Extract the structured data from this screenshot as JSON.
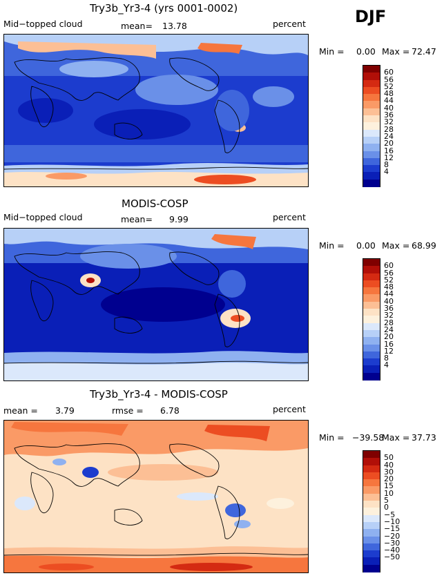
{
  "season": "DJF",
  "panels": [
    {
      "title": "Try3b_Yr3-4 (yrs 0001-0002)",
      "left_label": "Mid−topped cloud",
      "center_label": "mean=",
      "center_value": "13.78",
      "right_label": "percent",
      "min_text": "Min =",
      "min_value": "0.00",
      "max_text": "Max =",
      "max_value": "72.47",
      "colorbar_labels": [
        "60",
        "56",
        "52",
        "48",
        "44",
        "40",
        "36",
        "32",
        "28",
        "24",
        "20",
        "16",
        "12",
        "8",
        "4"
      ],
      "colorbar_colors": [
        "#7f0000",
        "#b10f08",
        "#d42a12",
        "#ec4d22",
        "#f6763e",
        "#fa9a66",
        "#fcbf95",
        "#fde2c5",
        "#fdf1dd",
        "#dbe8fb",
        "#b7d0f7",
        "#8fb1f0",
        "#6a90e8",
        "#3f66dc",
        "#1c3cce",
        "#0a1fb7",
        "#00008f"
      ]
    },
    {
      "title": "MODIS-COSP",
      "left_label": "Mid−topped cloud",
      "center_label": "mean=",
      "center_value": "9.99",
      "right_label": "percent",
      "min_text": "Min =",
      "min_value": "0.00",
      "max_text": "Max =",
      "max_value": "68.99",
      "colorbar_labels": [
        "60",
        "56",
        "52",
        "48",
        "44",
        "40",
        "36",
        "32",
        "28",
        "24",
        "20",
        "16",
        "12",
        "8",
        "4"
      ],
      "colorbar_colors": [
        "#7f0000",
        "#b10f08",
        "#d42a12",
        "#ec4d22",
        "#f6763e",
        "#fa9a66",
        "#fcbf95",
        "#fde2c5",
        "#fdf1dd",
        "#dbe8fb",
        "#b7d0f7",
        "#8fb1f0",
        "#6a90e8",
        "#3f66dc",
        "#1c3cce",
        "#0a1fb7",
        "#00008f"
      ]
    },
    {
      "title": "Try3b_Yr3-4 - MODIS-COSP",
      "left_label": "mean =",
      "left_value": "3.79",
      "center_label": "rmse =",
      "center_value": "6.78",
      "right_label": "percent",
      "min_text": "Min =",
      "min_value": "−39.58",
      "max_text": "Max =",
      "max_value": "37.73",
      "colorbar_labels": [
        "50",
        "40",
        "30",
        "20",
        "15",
        "10",
        "5",
        "0",
        "−5",
        "−10",
        "−15",
        "−20",
        "−30",
        "−40",
        "−50"
      ],
      "colorbar_colors": [
        "#7f0000",
        "#b10f08",
        "#d42a12",
        "#ec4d22",
        "#f6763e",
        "#fa9a66",
        "#fcbf95",
        "#fde2c5",
        "#fdf1dd",
        "#dbe8fb",
        "#b7d0f7",
        "#8fb1f0",
        "#6a90e8",
        "#3f66dc",
        "#1c3cce",
        "#0a1fb7",
        "#00008f"
      ]
    }
  ],
  "chart_data": [
    {
      "type": "heatmap",
      "title": "Try3b_Yr3-4 (yrs 0001-0002)",
      "variable": "Mid−topped cloud",
      "units": "percent",
      "mean": 13.78,
      "min": 0.0,
      "max": 72.47,
      "contour_levels": [
        4,
        8,
        12,
        16,
        20,
        24,
        28,
        32,
        36,
        40,
        44,
        48,
        52,
        56,
        60
      ]
    },
    {
      "type": "heatmap",
      "title": "MODIS-COSP",
      "variable": "Mid−topped cloud",
      "units": "percent",
      "mean": 9.99,
      "min": 0.0,
      "max": 68.99,
      "contour_levels": [
        4,
        8,
        12,
        16,
        20,
        24,
        28,
        32,
        36,
        40,
        44,
        48,
        52,
        56,
        60
      ]
    },
    {
      "type": "heatmap",
      "title": "Try3b_Yr3-4 - MODIS-COSP",
      "units": "percent",
      "mean": 3.79,
      "rmse": 6.78,
      "min": -39.58,
      "max": 37.73,
      "contour_levels": [
        -50,
        -40,
        -30,
        -20,
        -15,
        -10,
        -5,
        0,
        5,
        10,
        15,
        20,
        30,
        40,
        50
      ]
    }
  ]
}
